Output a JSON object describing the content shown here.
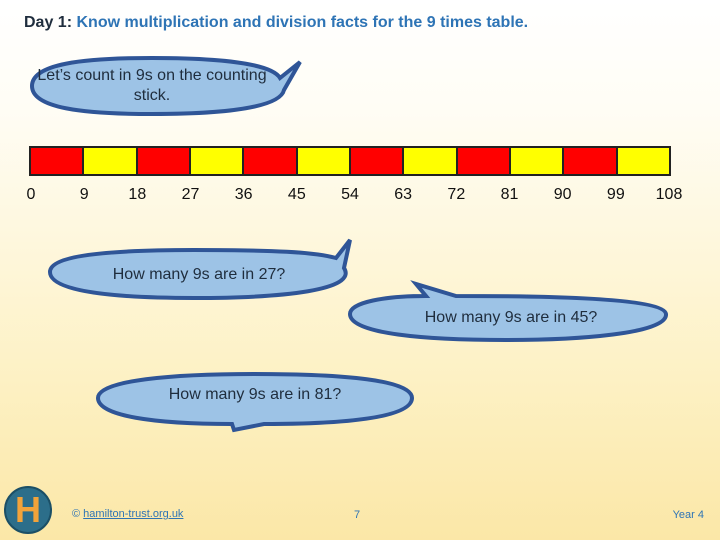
{
  "title": {
    "prefix": "Day 1:",
    "text": "Know multiplication and division facts for the 9 times table."
  },
  "bubbles": {
    "intro": "Let’s count in 9s on the counting stick.",
    "q1": "How many 9s are in 27?",
    "q2": "How many 9s are in 45?",
    "q3": "How many 9s are in 81?"
  },
  "stick": {
    "segment_colors": [
      "#ff0000",
      "#ffff00",
      "#ff0000",
      "#ffff00",
      "#ff0000",
      "#ffff00",
      "#ff0000",
      "#ffff00",
      "#ff0000",
      "#ffff00",
      "#ff0000",
      "#ffff00"
    ],
    "numbers": [
      "0",
      "9",
      "18",
      "27",
      "36",
      "45",
      "54",
      "63",
      "72",
      "81",
      "90",
      "99",
      "108"
    ]
  },
  "footer": {
    "logo_letter": "H",
    "copyright": "©",
    "link": "hamilton-trust.org.uk",
    "page": "7",
    "year": "Year 4"
  },
  "colors": {
    "bubble_fill": "#9dc3e6",
    "bubble_stroke": "#2f5597",
    "accent": "#2e74b5"
  }
}
